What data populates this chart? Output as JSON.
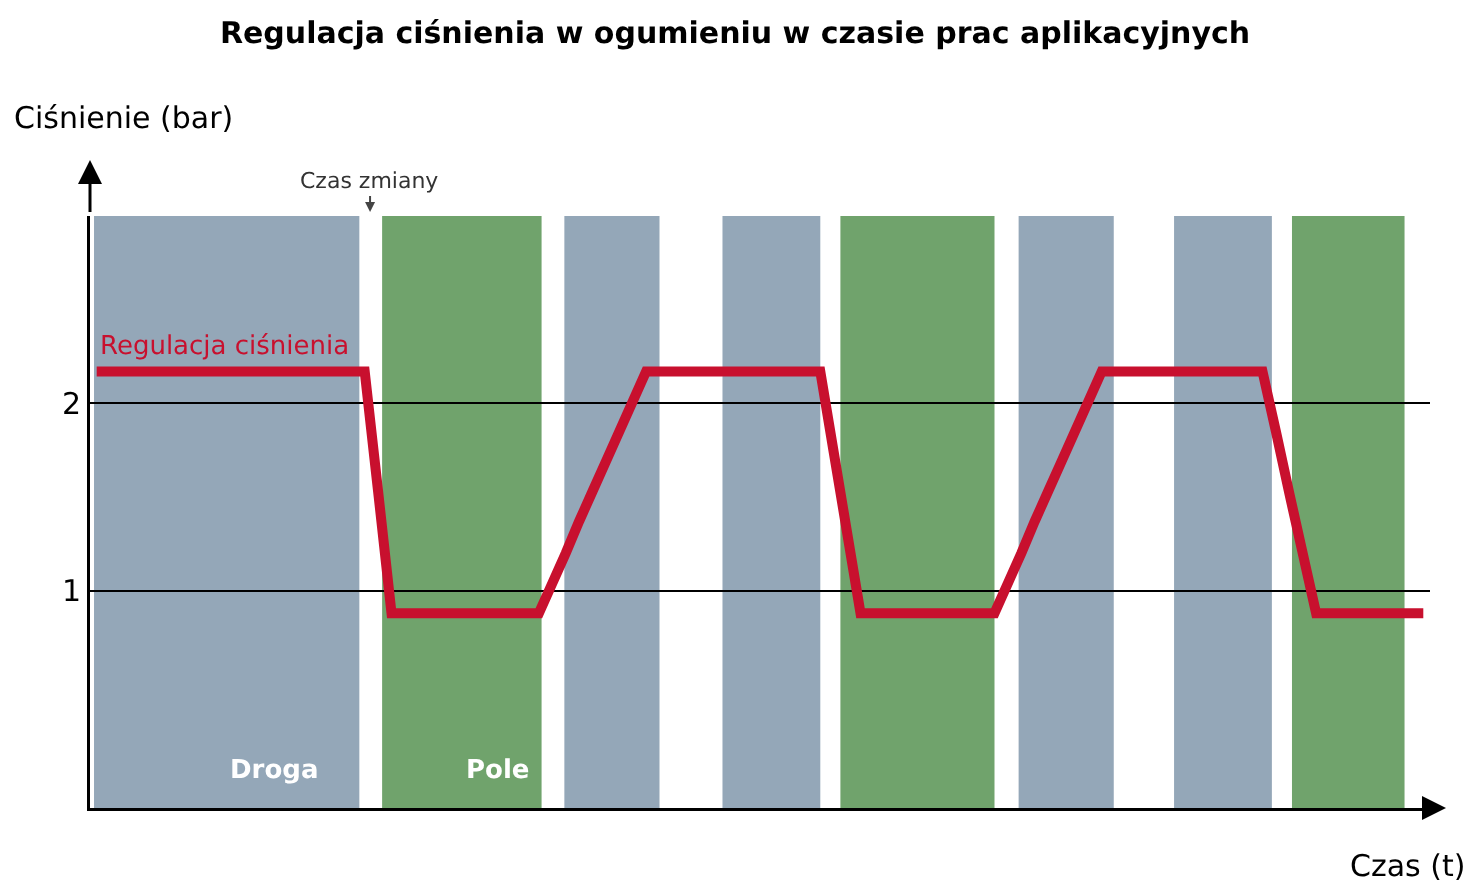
{
  "chart_data": {
    "type": "line",
    "title": "Regulacja ciśnienia w ogumieniu w czasie prac aplikacyjnych",
    "xlabel": "Czas (t)",
    "ylabel": "Ciśnienie (bar)",
    "categories": [
      null,
      null,
      null,
      null,
      null,
      null,
      null,
      null,
      null,
      null,
      null,
      null,
      null,
      null,
      null,
      null,
      null,
      null,
      null,
      null,
      null,
      null,
      null,
      null,
      null,
      null,
      null,
      null,
      null,
      null,
      null,
      null,
      null,
      null,
      null,
      null,
      null,
      null,
      null,
      null,
      null,
      null,
      null,
      null,
      null,
      null,
      null,
      null,
      null,
      null,
      null,
      null,
      null,
      null,
      null,
      null,
      null,
      null,
      null,
      null,
      null,
      null,
      null,
      null,
      null,
      null,
      null,
      null,
      null,
      null,
      null,
      null,
      null,
      null,
      null,
      null,
      null,
      null,
      null,
      null,
      null,
      null,
      null,
      null,
      null,
      null,
      null,
      null,
      null,
      null,
      null,
      null,
      null,
      null,
      null,
      null,
      null,
      null,
      null,
      null
    ],
    "series": [
      {
        "name": "Regulacja ciśnienia",
        "color": "#c8102e",
        "values": [
          2.17,
          2.17,
          2.17,
          2.17,
          2.17,
          2.17,
          2.17,
          2.17,
          2.17,
          2.17,
          2.17,
          2.17,
          2.17,
          2.17,
          2.17,
          2.17,
          2.17,
          2.17,
          2.17,
          2.17,
          2.17,
          1.53,
          0.88,
          0.88,
          0.88,
          0.88,
          0.88,
          0.88,
          0.88,
          0.88,
          0.88,
          0.88,
          0.88,
          0.88,
          1.04,
          1.2,
          1.37,
          1.53,
          1.69,
          1.85,
          2.01,
          2.17,
          2.17,
          2.17,
          2.17,
          2.17,
          2.17,
          2.17,
          2.17,
          2.17,
          2.17,
          2.17,
          2.17,
          2.17,
          2.17,
          1.74,
          1.31,
          0.88,
          0.88,
          0.88,
          0.88,
          0.88,
          0.88,
          0.88,
          0.88,
          0.88,
          0.88,
          0.88,
          1.04,
          1.2,
          1.37,
          1.53,
          1.69,
          1.85,
          2.01,
          2.17,
          2.17,
          2.17,
          2.17,
          2.17,
          2.17,
          2.17,
          2.17,
          2.17,
          2.17,
          2.17,
          2.17,
          2.17,
          1.85,
          1.52,
          1.2,
          0.88,
          0.88,
          0.88,
          0.88,
          0.88,
          0.88,
          0.88,
          0.88,
          0.88
        ]
      }
    ],
    "ylim": [
      -0.16,
      3.0
    ],
    "yticks": [
      1,
      2
    ],
    "grid": "y",
    "tick_labels": "y",
    "marker": "none",
    "line_style": "solid",
    "annotations": [
      "Czas zmiany",
      "Droga",
      "Pole"
    ]
  }
}
